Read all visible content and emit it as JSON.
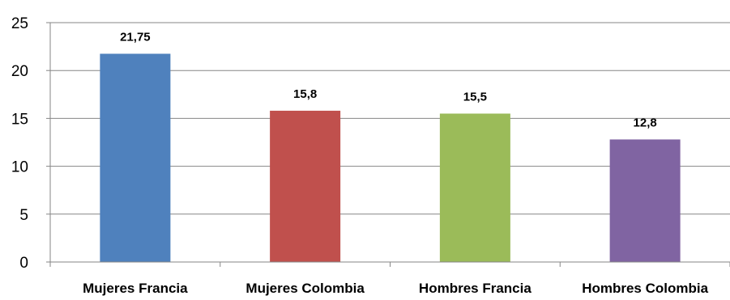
{
  "chart_data": {
    "type": "bar",
    "categories": [
      "Mujeres Francia",
      "Mujeres Colombia",
      "Hombres Francia",
      "Hombres Colombia"
    ],
    "values": [
      21.75,
      15.8,
      15.5,
      12.8
    ],
    "data_labels": [
      "21,75",
      "15,8",
      "15,5",
      "12,8"
    ],
    "colors": [
      "#4f81bd",
      "#c0504d",
      "#9bbb59",
      "#8064a2"
    ],
    "y_ticks": [
      0,
      5,
      10,
      15,
      20,
      25
    ],
    "ylim": [
      0,
      25
    ],
    "grid": true,
    "gridline_color": "#868686",
    "title": "",
    "xlabel": "",
    "ylabel": ""
  }
}
